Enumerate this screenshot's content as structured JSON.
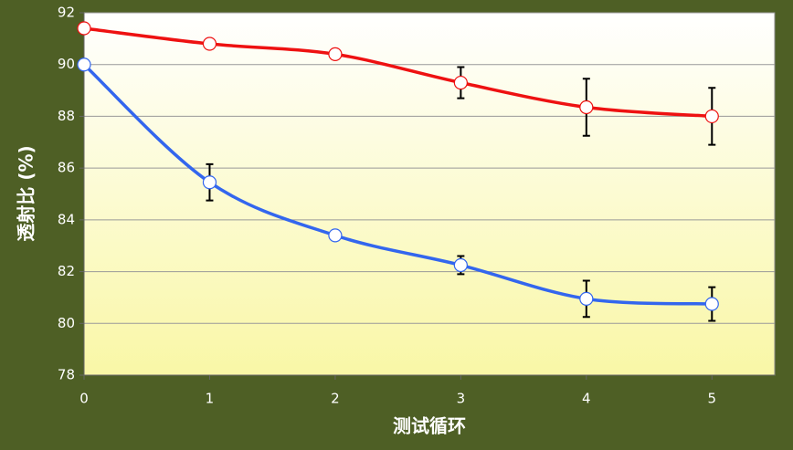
{
  "chart_data": {
    "type": "line",
    "x_label": "测试循环",
    "y_label": "透射比 (%)",
    "x": [
      0,
      1,
      2,
      3,
      4,
      5
    ],
    "series": [
      {
        "color": "#ee1111",
        "values": [
          91.4,
          90.8,
          90.4,
          89.3,
          88.35,
          88.0
        ],
        "errors": [
          0,
          0.1,
          0.15,
          0.6,
          1.1,
          1.1
        ]
      },
      {
        "color": "#3366ee",
        "values": [
          90.0,
          85.45,
          83.4,
          82.25,
          80.95,
          80.75
        ],
        "errors": [
          0,
          0.7,
          0,
          0.35,
          0.7,
          0.65
        ]
      }
    ],
    "xlim": [
      0,
      5.5
    ],
    "xticks": [
      0,
      1,
      2,
      3,
      4,
      5
    ],
    "ylim": [
      78,
      92
    ],
    "yticks": [
      78,
      80,
      82,
      84,
      86,
      88,
      90,
      92
    ],
    "grid": true
  }
}
